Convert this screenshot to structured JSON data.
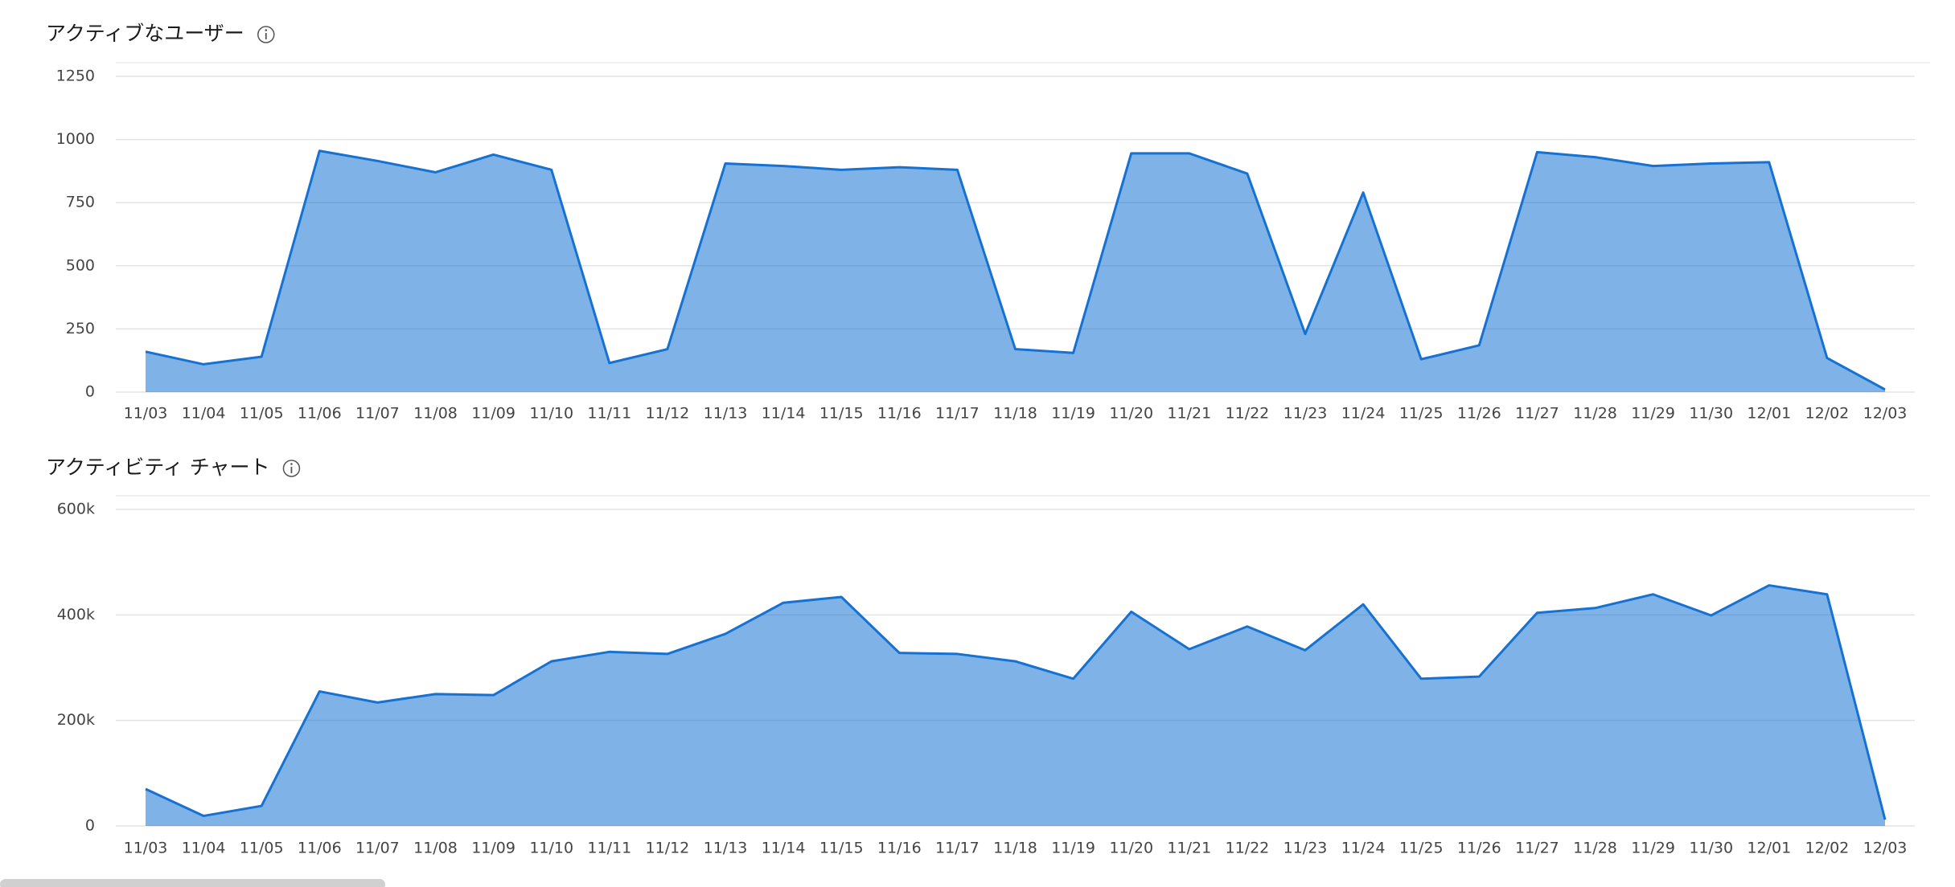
{
  "chart_data": [
    {
      "type": "area",
      "title": "アクティブなユーザー",
      "color": "#1572d2",
      "categories": [
        "11/03",
        "11/04",
        "11/05",
        "11/06",
        "11/07",
        "11/08",
        "11/09",
        "11/10",
        "11/11",
        "11/12",
        "11/13",
        "11/14",
        "11/15",
        "11/16",
        "11/17",
        "11/18",
        "11/19",
        "11/20",
        "11/21",
        "11/22",
        "11/23",
        "11/24",
        "11/25",
        "11/26",
        "11/27",
        "11/28",
        "11/29",
        "11/30",
        "12/01",
        "12/02",
        "12/03"
      ],
      "values": [
        160,
        110,
        140,
        955,
        915,
        870,
        940,
        880,
        115,
        170,
        905,
        895,
        880,
        890,
        880,
        170,
        155,
        945,
        945,
        865,
        230,
        790,
        130,
        185,
        950,
        930,
        895,
        905,
        910,
        135,
        10
      ],
      "ylim": [
        0,
        1250
      ],
      "yticks": [
        0,
        250,
        500,
        750,
        1000,
        1250
      ],
      "grid": true
    },
    {
      "type": "area",
      "title": "アクティビティ チャート",
      "color": "#1572d2",
      "categories": [
        "11/03",
        "11/04",
        "11/05",
        "11/06",
        "11/07",
        "11/08",
        "11/09",
        "11/10",
        "11/11",
        "11/12",
        "11/13",
        "11/14",
        "11/15",
        "11/16",
        "11/17",
        "11/18",
        "11/19",
        "11/20",
        "11/21",
        "11/22",
        "11/23",
        "11/24",
        "11/25",
        "11/26",
        "11/27",
        "11/28",
        "11/29",
        "11/30",
        "12/01",
        "12/02",
        "12/03"
      ],
      "values": [
        70000,
        19000,
        38000,
        255000,
        234000,
        250000,
        248000,
        312000,
        330000,
        326000,
        364000,
        423000,
        434000,
        328000,
        326000,
        312000,
        279000,
        406000,
        335000,
        378000,
        333000,
        420000,
        279000,
        283000,
        404000,
        413000,
        439000,
        399000,
        456000,
        439000,
        12000
      ],
      "ylim": [
        0,
        600000
      ],
      "yticks": [
        0,
        {
          "value": 200000,
          "label": "200k"
        },
        {
          "value": 400000,
          "label": "400k"
        },
        {
          "value": 600000,
          "label": "600k"
        }
      ],
      "grid": true
    }
  ]
}
